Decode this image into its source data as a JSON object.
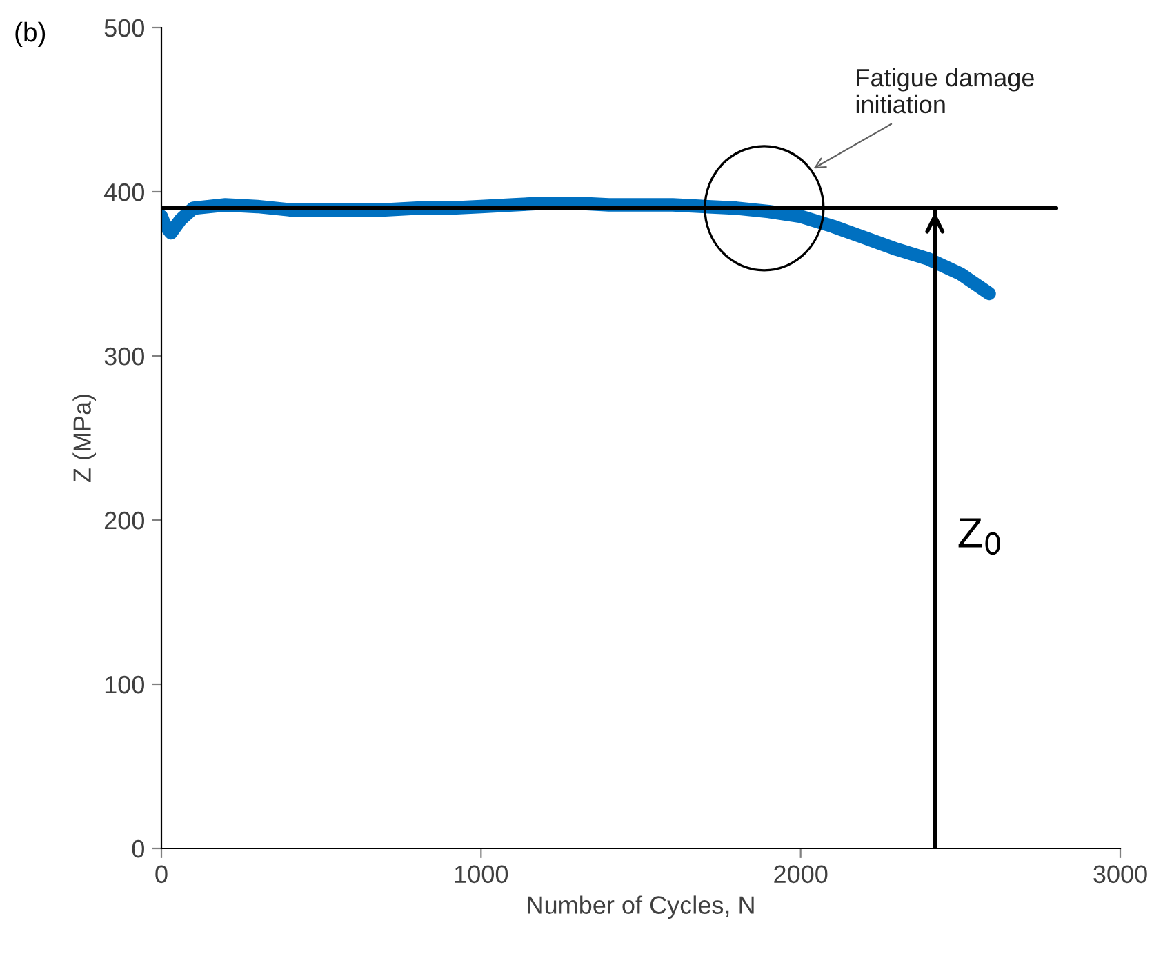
{
  "chart_data": {
    "type": "line",
    "xlabel": "Number of Cycles, N",
    "ylabel": "Z (MPa)",
    "xlim": [
      0,
      3000
    ],
    "xticks": [
      0,
      1000,
      2000,
      3000
    ],
    "ylim": [
      0,
      500
    ],
    "yticks": [
      0,
      100,
      200,
      300,
      400,
      500
    ],
    "grid": false,
    "series": [
      {
        "color": "#0070c0",
        "x": [
          0,
          10,
          30,
          60,
          100,
          200,
          300,
          400,
          500,
          600,
          700,
          800,
          900,
          1000,
          1100,
          1200,
          1300,
          1400,
          1500,
          1600,
          1700,
          1800,
          1900,
          2000,
          2100,
          2200,
          2300,
          2400,
          2500,
          2590
        ],
        "values": [
          385,
          380,
          375,
          383,
          390,
          392,
          391,
          389,
          389,
          389,
          389,
          390,
          390,
          391,
          392,
          393,
          393,
          392,
          392,
          392,
          391,
          390,
          388,
          385,
          379,
          372,
          365,
          359,
          350,
          338
        ]
      },
      {
        "color": "#000000",
        "x": [
          0,
          2800
        ],
        "values": [
          390,
          390
        ]
      },
      {
        "color": "#000000",
        "x": [
          2420,
          2420
        ],
        "values": [
          0,
          390
        ]
      }
    ],
    "annotations": [
      "(b)",
      "Fatigue damage initiation",
      "Z$_{0}$"
    ]
  }
}
